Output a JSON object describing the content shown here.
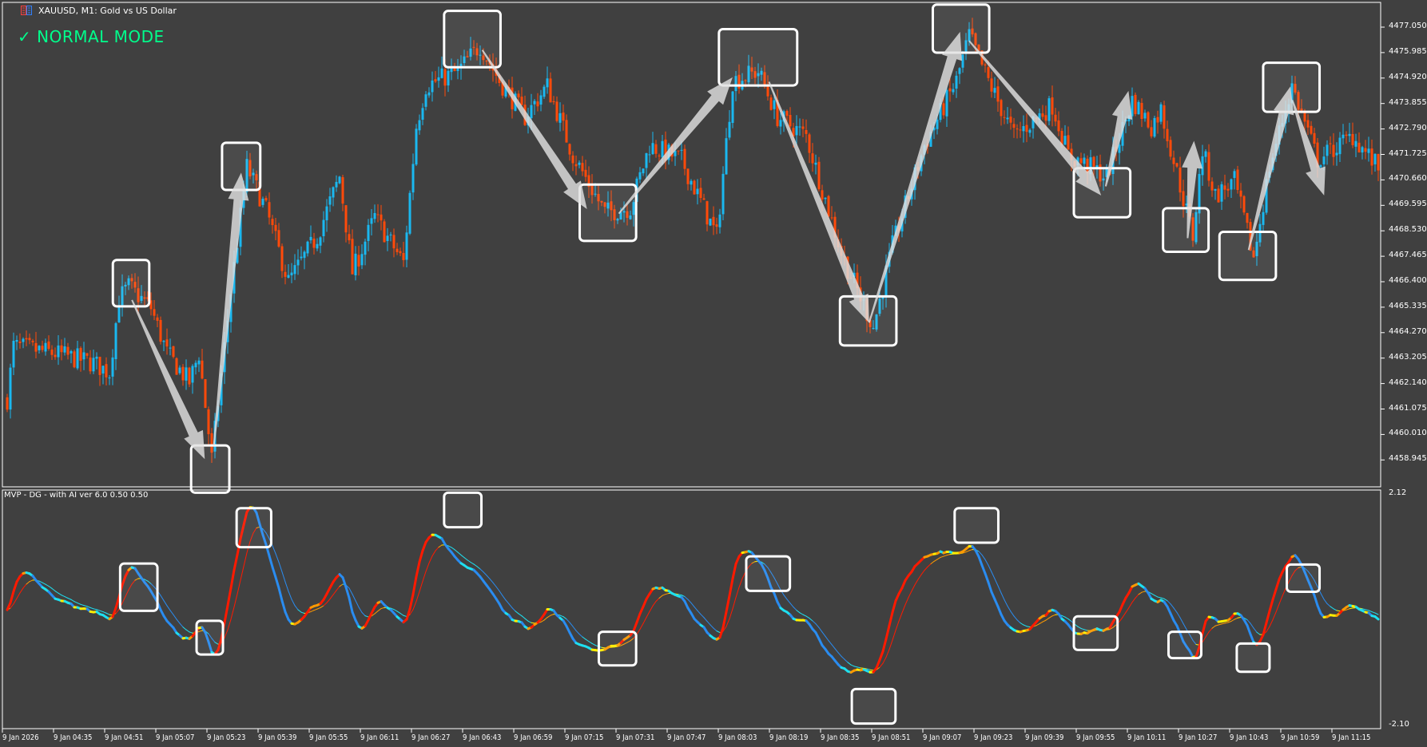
{
  "window": {
    "symbol_title": "XAUUSD, M1:  Gold vs US Dollar"
  },
  "overlay": {
    "mode_label": "✓ NORMAL MODE"
  },
  "indicator": {
    "label": "MVP - DG - with AI ver 6.0 0.50 0.50",
    "scale_max": "2.12",
    "scale_min": "-2.10"
  },
  "price_axis": [
    "4477.050",
    "4475.985",
    "4474.920",
    "4473.855",
    "4472.790",
    "4471.725",
    "4470.660",
    "4469.595",
    "4468.530",
    "4467.465",
    "4466.400",
    "4465.335",
    "4464.270",
    "4463.205",
    "4462.140",
    "4461.075",
    "4460.010",
    "4458.945"
  ],
  "time_axis": [
    "9 Jan 2026",
    "9 Jan 04:35",
    "9 Jan 04:51",
    "9 Jan 05:07",
    "9 Jan 05:23",
    "9 Jan 05:39",
    "9 Jan 05:55",
    "9 Jan 06:11",
    "9 Jan 06:27",
    "9 Jan 06:43",
    "9 Jan 06:59",
    "9 Jan 07:15",
    "9 Jan 07:31",
    "9 Jan 07:47",
    "9 Jan 08:03",
    "9 Jan 08:19",
    "9 Jan 08:35",
    "9 Jan 08:51",
    "9 Jan 09:07",
    "9 Jan 09:23",
    "9 Jan 09:39",
    "9 Jan 09:55",
    "9 Jan 10:11",
    "9 Jan 10:27",
    "9 Jan 10:43",
    "9 Jan 10:59",
    "9 Jan 11:15"
  ],
  "colors": {
    "background": "#404040",
    "bull": "#1ab8f0",
    "bear": "#ff4a0a",
    "mode_text": "#00ff8c",
    "osc_strong_up": "#ff1a00",
    "osc_up": "#ff9a00",
    "osc_flat": "#ffee00",
    "osc_down": "#1ee0f0",
    "osc_strong_down": "#2a8cf0"
  },
  "chart_data": {
    "type": "candlestick",
    "timeframe": "M1",
    "ylim": [
      4458.4,
      4477.6
    ],
    "close_path": [
      [
        "04:20",
        4461.5
      ],
      [
        "04:22",
        4463.7
      ],
      [
        "04:35",
        4463.4
      ],
      [
        "04:47",
        4463.0
      ],
      [
        "04:52",
        4462.6
      ],
      [
        "04:55",
        4465.7
      ],
      [
        "04:58",
        4466.2
      ],
      [
        "05:05",
        4465.3
      ],
      [
        "05:10",
        4463.4
      ],
      [
        "05:17",
        4462.2
      ],
      [
        "05:20",
        4463.4
      ],
      [
        "05:24",
        4459.0
      ],
      [
        "05:30",
        4466.0
      ],
      [
        "05:35",
        4471.2
      ],
      [
        "05:41",
        4469.4
      ],
      [
        "05:48",
        4466.4
      ],
      [
        "05:57",
        4468.3
      ],
      [
        "06:04",
        4470.8
      ],
      [
        "06:08",
        4466.8
      ],
      [
        "06:15",
        4469.1
      ],
      [
        "06:24",
        4467.2
      ],
      [
        "06:28",
        4472.9
      ],
      [
        "06:31",
        4474.6
      ],
      [
        "06:41",
        4475.2
      ],
      [
        "06:48",
        4476.3
      ],
      [
        "06:54",
        4474.8
      ],
      [
        "07:02",
        4473.3
      ],
      [
        "07:09",
        4474.6
      ],
      [
        "07:17",
        4471.7
      ],
      [
        "07:27",
        4469.3
      ],
      [
        "07:35",
        4469.5
      ],
      [
        "07:41",
        4472.1
      ],
      [
        "07:51",
        4471.5
      ],
      [
        "08:02",
        4468.3
      ],
      [
        "08:07",
        4474.8
      ],
      [
        "08:15",
        4475.2
      ],
      [
        "08:21",
        4473.3
      ],
      [
        "08:30",
        4472.5
      ],
      [
        "08:41",
        4467.6
      ],
      [
        "08:51",
        4464.5
      ],
      [
        "08:57",
        4467.9
      ],
      [
        "09:07",
        4472.1
      ],
      [
        "09:17",
        4474.8
      ],
      [
        "09:21",
        4476.7
      ],
      [
        "09:27",
        4474.8
      ],
      [
        "09:35",
        4472.5
      ],
      [
        "09:47",
        4473.8
      ],
      [
        "09:52",
        4471.7
      ],
      [
        "10:04",
        4470.8
      ],
      [
        "10:12",
        4474.0
      ],
      [
        "10:18",
        4472.9
      ],
      [
        "10:21",
        4473.6
      ],
      [
        "10:31",
        4468.3
      ],
      [
        "10:34",
        4471.9
      ],
      [
        "10:38",
        4470.0
      ],
      [
        "10:44",
        4470.6
      ],
      [
        "10:50",
        4467.4
      ],
      [
        "10:55",
        4471.2
      ],
      [
        "11:02",
        4474.6
      ],
      [
        "11:10",
        4471.5
      ],
      [
        "11:21",
        4472.5
      ],
      [
        "11:31",
        4470.8
      ]
    ]
  }
}
